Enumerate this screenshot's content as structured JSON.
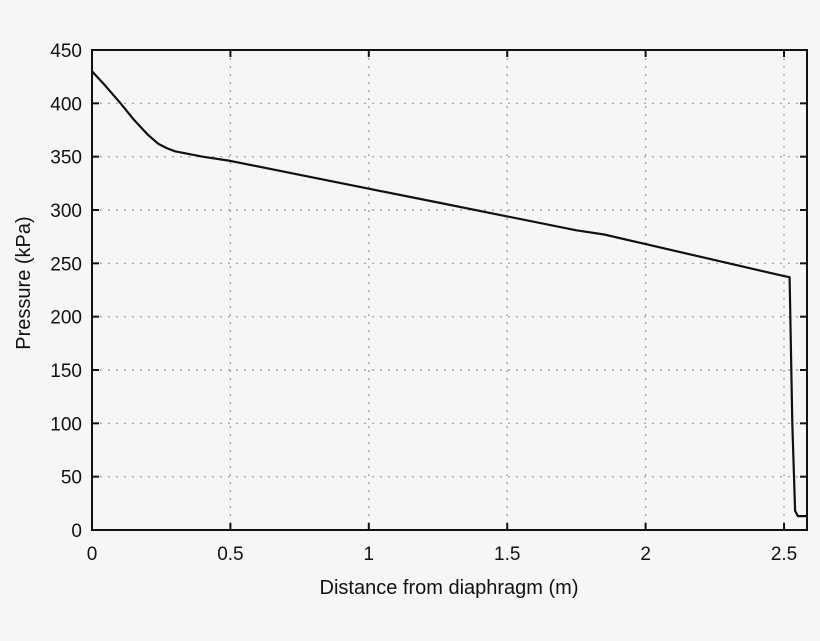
{
  "chart_data": {
    "type": "line",
    "title": "",
    "xlabel": "Distance from diaphragm (m)",
    "ylabel": "Pressure (kPa)",
    "xlim": [
      0,
      2.583
    ],
    "ylim": [
      0,
      450
    ],
    "grid": true,
    "legend": null,
    "x_ticks": [
      0,
      0.5,
      1,
      1.5,
      2,
      2.5
    ],
    "x_tick_labels": [
      "0",
      "0.5",
      "1",
      "1.5",
      "2",
      "2.5"
    ],
    "y_ticks": [
      0,
      50,
      100,
      150,
      200,
      250,
      300,
      350,
      400,
      450
    ],
    "y_tick_labels": [
      "0",
      "50",
      "100",
      "150",
      "200",
      "250",
      "300",
      "350",
      "400",
      "450"
    ],
    "series": [
      {
        "name": "Pressure",
        "color": "#111111",
        "x": [
          0,
          0.05,
          0.1,
          0.15,
          0.2,
          0.24,
          0.27,
          0.3,
          0.4,
          0.5,
          0.75,
          1.0,
          1.25,
          1.5,
          1.75,
          1.85,
          2.0,
          2.25,
          2.5,
          2.52,
          2.53,
          2.54,
          2.55,
          2.583
        ],
        "y": [
          430,
          416,
          401,
          385,
          371,
          362,
          358,
          355,
          350,
          346,
          333,
          320,
          307,
          294,
          281,
          277,
          268,
          253,
          238,
          237,
          100,
          18,
          13,
          13
        ]
      }
    ]
  }
}
